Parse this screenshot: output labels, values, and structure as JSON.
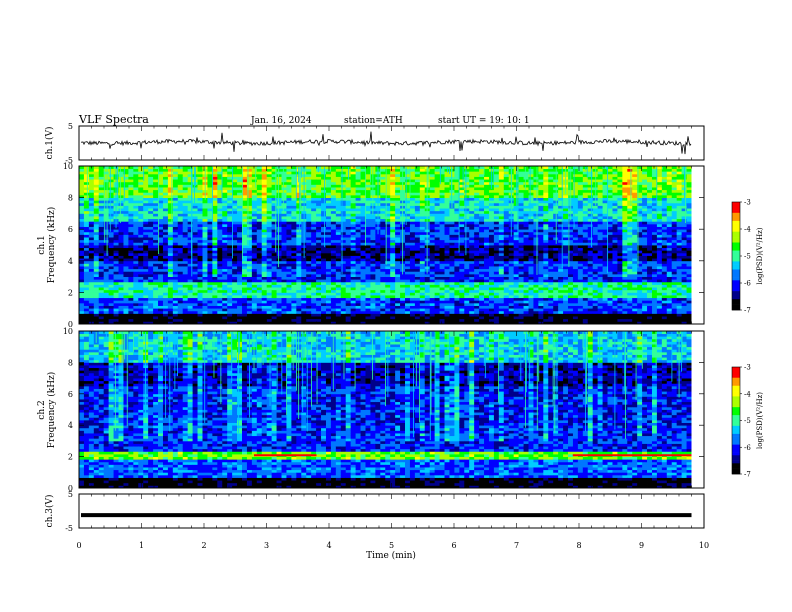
{
  "header": {
    "title": "VLF  Spectra",
    "date": "Jan. 16, 2024",
    "station": "station=ATH",
    "start": "start  UT  =   19: 10: 1"
  },
  "chart_data": [
    {
      "type": "line",
      "panel": "ch1-waveform",
      "ylabel": "ch.1(V)",
      "ylim": [
        -5,
        5
      ],
      "y_tick_labels": [
        "5",
        "-5"
      ],
      "series_color": "#000000",
      "description_values": {
        "baseline_v": 0.2,
        "typical_spike_v": 2.5
      }
    },
    {
      "type": "heatmap",
      "panel": "ch1-spectrogram",
      "ylabel": "ch.1\nFrequency (kHz)",
      "ylim": [
        0,
        10
      ],
      "y_tick_labels": [
        "0",
        "2",
        "4",
        "6",
        "8",
        "10"
      ],
      "colorbar": {
        "label": "log(PSD)(V²/Hz)",
        "min": -7,
        "max": -3,
        "tick_labels": [
          "-3",
          "-4",
          "-5",
          "-6",
          "-7"
        ]
      },
      "bands_khz": [
        {
          "f_low": 0.0,
          "f_high": 0.6,
          "level": -6.9
        },
        {
          "f_low": 0.6,
          "f_high": 1.6,
          "level": -5.9
        },
        {
          "f_low": 1.6,
          "f_high": 2.6,
          "level": -5.0
        },
        {
          "f_low": 2.6,
          "f_high": 4.0,
          "level": -6.0
        },
        {
          "f_low": 4.0,
          "f_high": 5.0,
          "level": -6.5
        },
        {
          "f_low": 5.0,
          "f_high": 6.5,
          "level": -6.0
        },
        {
          "f_low": 6.5,
          "f_high": 8.0,
          "level": -5.3
        },
        {
          "f_low": 8.0,
          "f_high": 10.0,
          "level": -4.6
        }
      ]
    },
    {
      "type": "heatmap",
      "panel": "ch2-spectrogram",
      "ylabel": "ch.2\nFrequency (kHz)",
      "ylim": [
        0,
        10
      ],
      "y_tick_labels": [
        "0",
        "2",
        "4",
        "6",
        "8",
        "10"
      ],
      "colorbar": {
        "label": "log(PSD)(V²/Hz)",
        "min": -7,
        "max": -3,
        "tick_labels": [
          "-3",
          "-4",
          "-5",
          "-6",
          "-7"
        ]
      },
      "bands_khz": [
        {
          "f_low": 0.0,
          "f_high": 0.6,
          "level": -6.9
        },
        {
          "f_low": 0.6,
          "f_high": 1.8,
          "level": -5.8
        },
        {
          "f_low": 1.8,
          "f_high": 2.4,
          "level": -4.5
        },
        {
          "f_low": 2.4,
          "f_high": 4.0,
          "level": -6.0
        },
        {
          "f_low": 4.0,
          "f_high": 6.5,
          "level": -6.1
        },
        {
          "f_low": 6.5,
          "f_high": 8.0,
          "level": -6.4
        },
        {
          "f_low": 8.0,
          "f_high": 10.0,
          "level": -5.4
        }
      ],
      "red_segments_min": [
        [
          2.8,
          3.8
        ],
        [
          7.9,
          9.8
        ]
      ]
    },
    {
      "type": "line",
      "panel": "ch3-waveform",
      "ylabel": "ch.3(V)",
      "ylim": [
        -5,
        5
      ],
      "y_tick_labels": [
        "5",
        "-5"
      ],
      "description_values": {
        "constant_v": -1.2
      }
    }
  ],
  "time_axis": {
    "xlabel": "Time  (min)",
    "xlim": [
      0,
      10
    ],
    "data_end_min": 9.8,
    "tick_labels": [
      "0",
      "1",
      "2",
      "3",
      "4",
      "5",
      "6",
      "7",
      "8",
      "9",
      "10"
    ]
  },
  "colormap": [
    "#000000",
    "#00008b",
    "#0000ff",
    "#0077ff",
    "#00ccff",
    "#33ff99",
    "#00ff00",
    "#aaff00",
    "#ffff00",
    "#ff9900",
    "#ff0000",
    "#ffffff"
  ]
}
